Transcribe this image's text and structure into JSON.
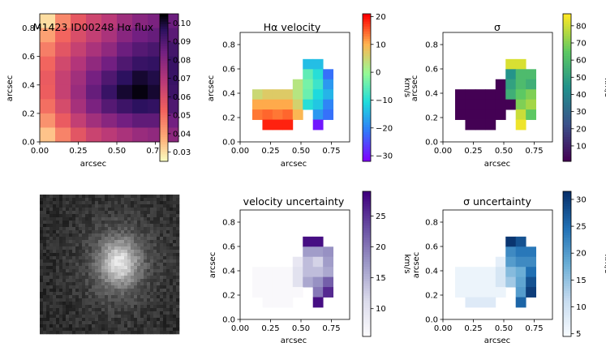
{
  "figure": {
    "background": "#ffffff"
  },
  "chart_data": [
    {
      "id": "flux",
      "type": "heatmap",
      "title": "M1423 ID00248 Hα flux",
      "xlabel": "arcsec",
      "ylabel": "arcsec",
      "xlim": [
        0,
        0.9
      ],
      "ylim": [
        0,
        0.9
      ],
      "xticks": [
        "0.00",
        "0.25",
        "0.50",
        "0.75"
      ],
      "yticks": [
        "0.0",
        "0.2",
        "0.4",
        "0.6",
        "0.8"
      ],
      "colormap": "magma_r",
      "colorbar": {
        "min": 0.025,
        "max": 0.105,
        "ticks": [
          "0.03",
          "0.04",
          "0.05",
          "0.06",
          "0.07",
          "0.08",
          "0.09",
          "0.10"
        ],
        "label": ""
      },
      "grid": {
        "x0": 0,
        "y0": 0,
        "cell": 0.1,
        "rows_top_to_bottom": [
          [
            0.03,
            0.045,
            0.056,
            0.063,
            0.068,
            0.075,
            0.08,
            0.083,
            0.086
          ],
          [
            0.04,
            0.052,
            0.06,
            0.066,
            0.072,
            0.08,
            0.085,
            0.087,
            0.089
          ],
          [
            0.047,
            0.057,
            0.065,
            0.072,
            0.078,
            0.086,
            0.09,
            0.092,
            0.093
          ],
          [
            0.052,
            0.062,
            0.07,
            0.078,
            0.085,
            0.091,
            0.095,
            0.096,
            0.095
          ],
          [
            0.055,
            0.065,
            0.074,
            0.084,
            0.091,
            0.097,
            0.101,
            0.099,
            0.095
          ],
          [
            0.054,
            0.065,
            0.076,
            0.087,
            0.095,
            0.101,
            0.104,
            0.101,
            0.094
          ],
          [
            0.05,
            0.061,
            0.073,
            0.083,
            0.09,
            0.094,
            0.097,
            0.096,
            0.091
          ],
          [
            0.043,
            0.055,
            0.066,
            0.074,
            0.08,
            0.085,
            0.088,
            0.088,
            0.085
          ],
          [
            0.034,
            0.046,
            0.057,
            0.064,
            0.068,
            0.072,
            0.076,
            0.078,
            0.079
          ]
        ]
      }
    },
    {
      "id": "velocity",
      "type": "heatmap",
      "title": "Hα velocity",
      "xlabel": "arcsec",
      "ylabel": "arcsec",
      "xlim": [
        0,
        0.9
      ],
      "ylim": [
        0,
        0.9
      ],
      "xticks": [
        "0.00",
        "0.25",
        "0.50",
        "0.75"
      ],
      "yticks": [
        "0.0",
        "0.2",
        "0.4",
        "0.6",
        "0.8"
      ],
      "colormap": "rainbow",
      "colorbar": {
        "min": -32,
        "max": 21,
        "ticks": [
          "20",
          "10",
          "0",
          "−10",
          "−20",
          "−30"
        ],
        "tick_values": [
          20,
          10,
          0,
          -10,
          -20,
          -30
        ],
        "label": "km/s"
      },
      "grid": {
        "x0": 0.1,
        "y0": 0.1,
        "cell": 0.083,
        "rows_top_to_bottom": [
          [
            null,
            null,
            null,
            null,
            null,
            -14,
            -14,
            null
          ],
          [
            null,
            null,
            null,
            null,
            null,
            -5,
            -10,
            -22
          ],
          [
            null,
            null,
            null,
            null,
            3,
            -3,
            -8,
            -18
          ],
          [
            5,
            7,
            7,
            7,
            3,
            -4,
            -11,
            -15
          ],
          [
            11,
            11,
            11,
            11,
            6,
            -10,
            -13,
            -20
          ],
          [
            14,
            15,
            14,
            15,
            10,
            null,
            -18,
            -22
          ],
          [
            null,
            19,
            19,
            19,
            null,
            null,
            -30,
            null
          ]
        ]
      }
    },
    {
      "id": "sigma",
      "type": "heatmap",
      "title": "σ",
      "xlabel": "arcsec",
      "ylabel": "arcsec",
      "xlim": [
        0,
        0.9
      ],
      "ylim": [
        0,
        0.9
      ],
      "xticks": [
        "0.00",
        "0.25",
        "0.50",
        "0.75"
      ],
      "yticks": [
        "0.0",
        "0.2",
        "0.4",
        "0.6",
        "0.8"
      ],
      "colormap": "viridis",
      "colorbar": {
        "min": 1,
        "max": 87,
        "ticks": [
          "80",
          "70",
          "60",
          "50",
          "40",
          "30",
          "20",
          "10"
        ],
        "tick_values": [
          80,
          70,
          60,
          50,
          40,
          30,
          20,
          10
        ],
        "label": "km/s"
      },
      "grid": {
        "x0": 0.1,
        "y0": 0.1,
        "cell": 0.083,
        "rows_top_to_bottom": [
          [
            null,
            null,
            null,
            null,
            null,
            82,
            82,
            null
          ],
          [
            null,
            null,
            null,
            null,
            null,
            45,
            60,
            60
          ],
          [
            null,
            null,
            null,
            null,
            1,
            50,
            60,
            55
          ],
          [
            1,
            1,
            1,
            1,
            1,
            55,
            65,
            70
          ],
          [
            1,
            1,
            1,
            1,
            1,
            1,
            70,
            75
          ],
          [
            1,
            1,
            1,
            1,
            1,
            null,
            80,
            65
          ],
          [
            null,
            1,
            1,
            1,
            null,
            null,
            85,
            null
          ]
        ]
      }
    },
    {
      "id": "image",
      "type": "image",
      "description_free": true
    },
    {
      "id": "vel_unc",
      "type": "heatmap",
      "title": "velocity uncertainty",
      "xlabel": "arcsec",
      "ylabel": "arcsec",
      "xlim": [
        0,
        0.9
      ],
      "ylim": [
        0,
        0.9
      ],
      "xticks": [
        "0.00",
        "0.25",
        "0.50",
        "0.75"
      ],
      "yticks": [
        "0.0",
        "0.2",
        "0.4",
        "0.6",
        "0.8"
      ],
      "colormap": "Purples",
      "colorbar": {
        "min": 5.5,
        "max": 29,
        "ticks": [
          "25",
          "20",
          "15",
          "10"
        ],
        "tick_values": [
          25,
          20,
          15,
          10
        ],
        "label": "km/s"
      },
      "grid": {
        "x0": 0.1,
        "y0": 0.1,
        "cell": 0.083,
        "rows_top_to_bottom": [
          [
            null,
            null,
            null,
            null,
            null,
            28,
            28,
            null
          ],
          [
            null,
            null,
            null,
            null,
            null,
            17,
            17,
            18
          ],
          [
            null,
            null,
            null,
            null,
            9,
            14,
            12,
            17
          ],
          [
            6,
            6,
            6,
            6,
            10,
            14,
            14,
            16
          ],
          [
            6,
            6,
            6,
            6,
            10,
            16,
            18,
            22
          ],
          [
            6,
            6,
            6,
            6,
            6,
            null,
            20,
            26
          ],
          [
            null,
            6,
            6,
            6,
            null,
            null,
            28,
            null
          ]
        ]
      }
    },
    {
      "id": "sig_unc",
      "type": "heatmap",
      "title": "σ uncertainty",
      "xlabel": "arcsec",
      "ylabel": "arcsec",
      "xlim": [
        0,
        0.9
      ],
      "ylim": [
        0,
        0.9
      ],
      "xticks": [
        "0.00",
        "0.25",
        "0.50",
        "0.75"
      ],
      "yticks": [
        "0.0",
        "0.2",
        "0.4",
        "0.6",
        "0.8"
      ],
      "colormap": "Blues",
      "colorbar": {
        "min": 4.5,
        "max": 31.5,
        "ticks": [
          "30",
          "25",
          "20",
          "15",
          "10",
          "5"
        ],
        "tick_values": [
          30,
          25,
          20,
          15,
          10,
          5
        ],
        "label": "km/s"
      },
      "grid": {
        "x0": 0.1,
        "y0": 0.1,
        "cell": 0.083,
        "rows_top_to_bottom": [
          [
            null,
            null,
            null,
            null,
            null,
            31,
            28,
            null
          ],
          [
            null,
            null,
            null,
            null,
            null,
            22,
            24,
            24
          ],
          [
            null,
            null,
            null,
            null,
            7,
            20,
            22,
            22
          ],
          [
            6,
            6,
            6,
            6,
            9,
            16,
            18,
            25
          ],
          [
            6,
            6,
            6,
            6,
            9,
            14,
            19,
            28
          ],
          [
            6,
            6,
            6,
            6,
            6,
            null,
            20,
            30
          ],
          [
            null,
            8,
            8,
            8,
            null,
            null,
            26,
            null
          ]
        ]
      }
    }
  ]
}
